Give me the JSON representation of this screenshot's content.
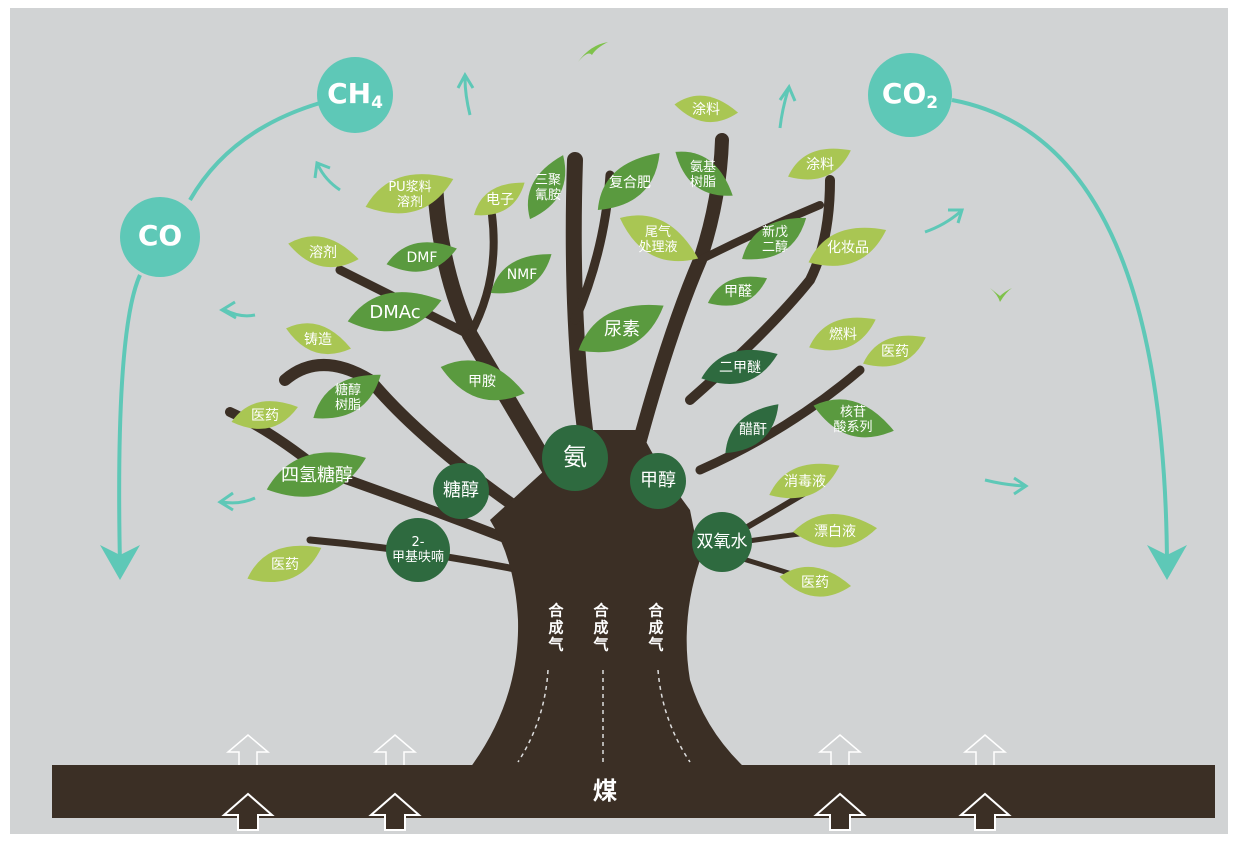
{
  "gases": [
    {
      "main": "CH",
      "sub": "4"
    },
    {
      "main": "CO",
      "sub": "2"
    },
    {
      "main": "CO",
      "sub": null
    }
  ],
  "hubs": [
    {
      "lines": [
        "氨"
      ]
    },
    {
      "lines": [
        "甲醇"
      ]
    },
    {
      "lines": [
        "糖醇"
      ]
    },
    {
      "lines": [
        "双氧水"
      ]
    },
    {
      "lines": [
        "2-",
        "甲基呋喃"
      ]
    }
  ],
  "leaves": [
    {
      "lines": [
        "PU浆料",
        "溶剂"
      ]
    },
    {
      "lines": [
        "电子"
      ]
    },
    {
      "lines": [
        "三聚",
        "氰胺"
      ]
    },
    {
      "lines": [
        "复合肥"
      ]
    },
    {
      "lines": [
        "涂料"
      ]
    },
    {
      "lines": [
        "氨基",
        "树脂"
      ]
    },
    {
      "lines": [
        "涂料"
      ]
    },
    {
      "lines": [
        "溶剂"
      ]
    },
    {
      "lines": [
        "DMF"
      ]
    },
    {
      "lines": [
        "NMF"
      ]
    },
    {
      "lines": [
        "尾气",
        "处理液"
      ]
    },
    {
      "lines": [
        "新戊",
        "二醇"
      ]
    },
    {
      "lines": [
        "化妆品"
      ]
    },
    {
      "lines": [
        "DMAc"
      ]
    },
    {
      "lines": [
        "甲醛"
      ]
    },
    {
      "lines": [
        "尿素"
      ]
    },
    {
      "lines": [
        "铸造"
      ]
    },
    {
      "lines": [
        "燃料"
      ]
    },
    {
      "lines": [
        "医药"
      ]
    },
    {
      "lines": [
        "甲胺"
      ]
    },
    {
      "lines": [
        "二甲醚"
      ]
    },
    {
      "lines": [
        "糖醇",
        "树脂"
      ]
    },
    {
      "lines": [
        "医药"
      ]
    },
    {
      "lines": [
        "醋酐"
      ]
    },
    {
      "lines": [
        "核苷",
        "酸系列"
      ]
    },
    {
      "lines": [
        "四氢糖醇"
      ]
    },
    {
      "lines": [
        "消毒液"
      ]
    },
    {
      "lines": [
        "漂白液"
      ]
    },
    {
      "lines": [
        "医药"
      ]
    },
    {
      "lines": [
        "医药"
      ]
    }
  ],
  "trunk_labels": [
    "合成气",
    "合成气",
    "合成气"
  ],
  "base": "煤"
}
